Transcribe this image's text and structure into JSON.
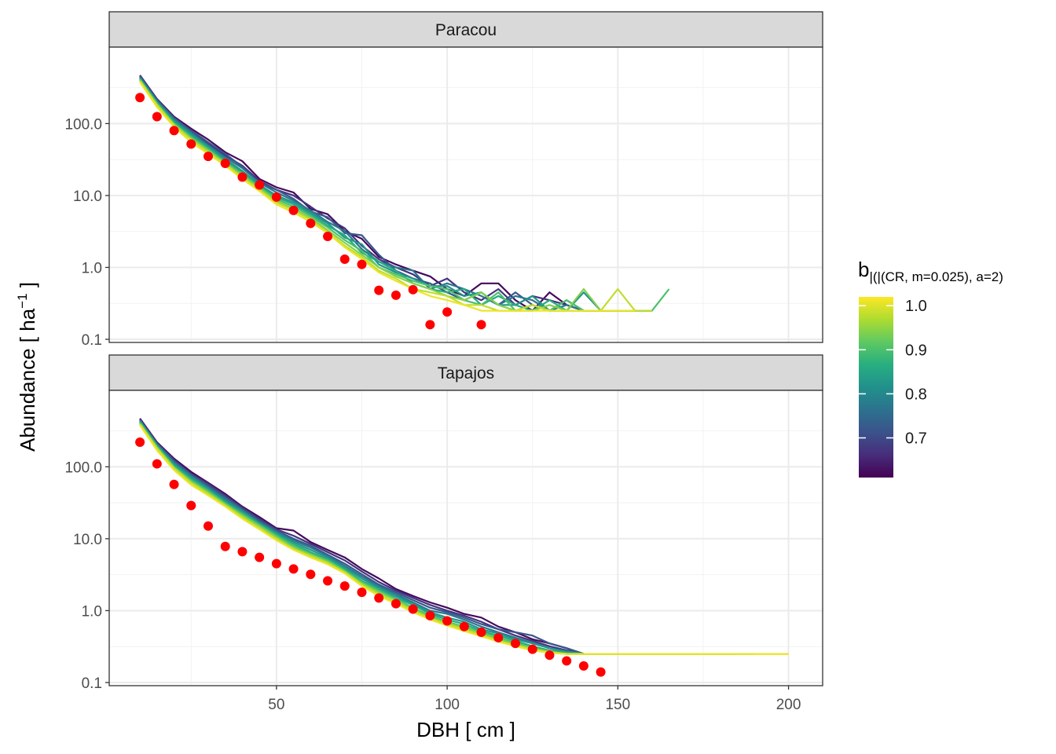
{
  "chart_data": {
    "type": "line",
    "xlabel": "DBH [ cm ]",
    "ylabel_main": "Abundance [ ha",
    "ylabel_sup": "−1",
    "ylabel_end": " ]",
    "y_scale": "log10",
    "ylim": [
      0.1,
      900
    ],
    "xlim": [
      1,
      210
    ],
    "x_ticks": [
      50,
      100,
      150,
      200
    ],
    "x_tick_labels": [
      "50",
      "100",
      "150",
      "200"
    ],
    "y_ticks": [
      0.1,
      1,
      10,
      100
    ],
    "y_tick_labels": [
      "0.1",
      "1.0",
      "10.0",
      "100.0"
    ],
    "grid": true,
    "legend": {
      "title_main": "b",
      "title_sub": "|(|(CR, m=0.025), a=2)",
      "placement": "right",
      "range": [
        0.61,
        1.02
      ],
      "ticks": [
        1.0,
        0.9,
        0.8,
        0.7
      ],
      "tick_labels": [
        "1.0",
        "0.9",
        "0.8",
        "0.7"
      ],
      "colors": [
        "#440154",
        "#472d7b",
        "#3b528b",
        "#2c728e",
        "#21918c",
        "#28ae80",
        "#5ec962",
        "#addc30",
        "#fde725"
      ]
    },
    "observed_color": "#ff0000",
    "panels": [
      {
        "label": "Paracou",
        "observed": {
          "x": [
            10,
            15,
            20,
            25,
            30,
            35,
            40,
            45,
            50,
            55,
            60,
            65,
            70,
            75,
            80,
            85,
            90,
            95,
            100,
            110
          ],
          "y": [
            230,
            125,
            80,
            52,
            35,
            28,
            18,
            14,
            9.5,
            6.2,
            4.1,
            2.7,
            1.3,
            1.1,
            0.48,
            0.41,
            0.49,
            0.16,
            0.24,
            0.16
          ]
        },
        "sim_x_step": 5,
        "series": [
          {
            "b": 0.62,
            "y": [
              470,
              220,
              125,
              85,
              60,
              40,
              30,
              17,
              13,
              11,
              6.5,
              5.5,
              3.2,
              2.5,
              1.4,
              1.1,
              0.9,
              0.75,
              0.5,
              0.4,
              0.6,
              0.6,
              0.35,
              0.25,
              0.45,
              0.3,
              0.25
            ]
          },
          {
            "b": 0.67,
            "y": [
              450,
              210,
              118,
              78,
              52,
              36,
              26,
              16,
              12,
              10,
              7,
              4.8,
              3.5,
              2.0,
              1.3,
              1.0,
              0.8,
              0.55,
              0.7,
              0.45,
              0.35,
              0.5,
              0.3,
              0.4,
              0.35,
              0.3,
              0.25,
              0.25,
              0.25
            ]
          },
          {
            "b": 0.72,
            "y": [
              460,
              215,
              120,
              80,
              55,
              38,
              25,
              15,
              12,
              9,
              6,
              5,
              3.0,
              2.8,
              1.5,
              0.9,
              0.7,
              0.6,
              0.45,
              0.35,
              0.45,
              0.3,
              0.45,
              0.3,
              0.25,
              0.35,
              0.25,
              0.25,
              0.25
            ]
          },
          {
            "b": 0.77,
            "y": [
              440,
              205,
              115,
              75,
              50,
              34,
              24,
              15,
              11,
              8.5,
              6.2,
              4.3,
              3.2,
              1.8,
              1.2,
              1.0,
              0.9,
              0.5,
              0.6,
              0.5,
              0.4,
              0.3,
              0.4,
              0.35,
              0.25,
              0.3,
              0.25,
              0.25,
              0.25,
              0.25
            ]
          },
          {
            "b": 0.82,
            "y": [
              430,
              200,
              110,
              72,
              48,
              32,
              22,
              14,
              10,
              8,
              5.8,
              4.1,
              2.6,
              2.1,
              1.1,
              0.85,
              0.7,
              0.55,
              0.55,
              0.4,
              0.45,
              0.3,
              0.3,
              0.4,
              0.25,
              0.25,
              0.45,
              0.25,
              0.25,
              0.25
            ]
          },
          {
            "b": 0.86,
            "y": [
              420,
              195,
              105,
              68,
              46,
              30,
              21,
              13.5,
              9.5,
              7.5,
              5.5,
              3.8,
              2.8,
              1.6,
              1.2,
              0.9,
              0.6,
              0.5,
              0.45,
              0.5,
              0.3,
              0.4,
              0.3,
              0.25,
              0.35,
              0.25,
              0.25,
              0.25,
              0.25,
              0.25,
              0.25
            ]
          },
          {
            "b": 0.9,
            "y": [
              410,
              190,
              100,
              65,
              44,
              29,
              20,
              13,
              9,
              7,
              5.2,
              3.6,
              2.4,
              1.7,
              1.0,
              0.8,
              0.65,
              0.55,
              0.5,
              0.35,
              0.3,
              0.45,
              0.25,
              0.3,
              0.25,
              0.35,
              0.25,
              0.25,
              0.25,
              0.25,
              0.25,
              0.5
            ]
          },
          {
            "b": 0.94,
            "y": [
              400,
              185,
              98,
              62,
              42,
              28,
              19,
              12.5,
              8.5,
              6.5,
              4.9,
              3.3,
              2.2,
              1.5,
              1.0,
              0.75,
              0.6,
              0.5,
              0.4,
              0.35,
              0.45,
              0.3,
              0.25,
              0.25,
              0.3,
              0.25,
              0.5,
              0.25,
              0.25,
              0.25
            ]
          },
          {
            "b": 0.98,
            "y": [
              390,
              180,
              95,
              60,
              40,
              27,
              18,
              12,
              8,
              6.2,
              4.6,
              3.1,
              2.0,
              1.4,
              0.9,
              0.7,
              0.5,
              0.45,
              0.4,
              0.3,
              0.3,
              0.25,
              0.25,
              0.3,
              0.25,
              0.25,
              0.25,
              0.25,
              0.5,
              0.25,
              0.25
            ]
          },
          {
            "b": 1.01,
            "y": [
              380,
              170,
              90,
              55,
              38,
              26,
              17,
              11.5,
              7.5,
              5.8,
              4.3,
              3.0,
              1.9,
              1.3,
              0.85,
              0.65,
              0.5,
              0.4,
              0.35,
              0.3,
              0.25,
              0.25,
              0.25,
              0.25,
              0.25,
              0.25,
              0.25,
              0.25,
              0.25,
              0.25
            ]
          }
        ]
      },
      {
        "label": "Tapajos",
        "observed": {
          "x": [
            10,
            15,
            20,
            25,
            30,
            35,
            40,
            45,
            50,
            55,
            60,
            65,
            70,
            75,
            80,
            85,
            90,
            95,
            100,
            105,
            110,
            115,
            120,
            125,
            130,
            135,
            140,
            145
          ],
          "y": [
            220,
            110,
            57,
            29,
            15,
            7.8,
            6.6,
            5.5,
            4.5,
            3.8,
            3.2,
            2.6,
            2.2,
            1.8,
            1.5,
            1.25,
            1.05,
            0.85,
            0.72,
            0.6,
            0.5,
            0.42,
            0.35,
            0.29,
            0.24,
            0.2,
            0.17,
            0.14
          ]
        },
        "sim_x_step": 5,
        "series": [
          {
            "b": 0.62,
            "y": [
              470,
              220,
              130,
              85,
              60,
              42,
              28,
              20,
              14,
              13,
              9,
              7,
              5.5,
              3.8,
              2.8,
              2.0,
              1.6,
              1.3,
              1.1,
              0.9,
              0.8,
              0.6,
              0.5,
              0.4,
              0.35,
              0.3,
              0.25,
              0.25,
              0.25
            ]
          },
          {
            "b": 0.67,
            "y": [
              460,
              215,
              125,
              80,
              58,
              40,
              27,
              19,
              13.5,
              11,
              8.5,
              6.5,
              5,
              3.5,
              2.5,
              1.9,
              1.5,
              1.2,
              1.0,
              0.85,
              0.7,
              0.55,
              0.45,
              0.38,
              0.32,
              0.28,
              0.25,
              0.25,
              0.25
            ]
          },
          {
            "b": 0.72,
            "y": [
              450,
              210,
              120,
              78,
              55,
              38,
              26,
              18,
              13,
              10,
              8,
              6,
              4.5,
              3.2,
              2.3,
              1.8,
              1.4,
              1.1,
              0.95,
              0.8,
              0.65,
              0.55,
              0.5,
              0.45,
              0.35,
              0.3,
              0.25,
              0.25,
              0.25
            ]
          },
          {
            "b": 0.77,
            "y": [
              440,
              205,
              115,
              75,
              52,
              36,
              25,
              17,
              12.5,
              9.5,
              7.5,
              5.8,
              4.2,
              3.0,
              2.2,
              1.7,
              1.3,
              1.0,
              0.9,
              0.75,
              0.6,
              0.5,
              0.42,
              0.36,
              0.3,
              0.27,
              0.25,
              0.25,
              0.25
            ]
          },
          {
            "b": 0.82,
            "y": [
              430,
              200,
              110,
              72,
              50,
              34,
              24,
              16.5,
              12,
              9,
              7,
              5.5,
              4.0,
              2.8,
              2.1,
              1.6,
              1.25,
              0.95,
              0.8,
              0.7,
              0.55,
              0.48,
              0.4,
              0.35,
              0.3,
              0.27,
              0.25,
              0.25,
              0.25
            ]
          },
          {
            "b": 0.86,
            "y": [
              420,
              195,
              105,
              68,
              48,
              32,
              23,
              16,
              11.5,
              8.5,
              6.5,
              5.2,
              3.8,
              2.6,
              2.0,
              1.5,
              1.2,
              0.9,
              0.75,
              0.65,
              0.52,
              0.45,
              0.38,
              0.32,
              0.28,
              0.26,
              0.25,
              0.25,
              0.25
            ]
          },
          {
            "b": 0.9,
            "y": [
              410,
              190,
              100,
              65,
              46,
              31,
              22,
              15.5,
              11,
              8,
              6.2,
              5.0,
              3.6,
              2.5,
              1.9,
              1.45,
              1.1,
              0.85,
              0.7,
              0.6,
              0.5,
              0.42,
              0.36,
              0.3,
              0.27,
              0.25,
              0.25,
              0.25,
              0.25,
              0.25,
              0.25,
              0.25,
              0.25,
              0.25,
              0.25,
              0.25
            ]
          },
          {
            "b": 0.94,
            "y": [
              400,
              185,
              98,
              62,
              44,
              30,
              21,
              15,
              10.5,
              7.5,
              6.0,
              4.8,
              3.5,
              2.4,
              1.8,
              1.4,
              1.05,
              0.8,
              0.68,
              0.58,
              0.48,
              0.4,
              0.34,
              0.3,
              0.27,
              0.25,
              0.25,
              0.25,
              0.25,
              0.25,
              0.25,
              0.25,
              0.25,
              0.25,
              0.25,
              0.25,
              0.25
            ]
          },
          {
            "b": 0.98,
            "y": [
              390,
              180,
              95,
              60,
              42,
              29,
              20,
              14,
              10,
              7.2,
              5.8,
              4.6,
              3.4,
              2.3,
              1.7,
              1.3,
              1.0,
              0.78,
              0.65,
              0.55,
              0.46,
              0.38,
              0.33,
              0.29,
              0.26,
              0.25,
              0.25,
              0.25,
              0.25,
              0.25,
              0.25,
              0.25,
              0.25,
              0.25,
              0.25,
              0.25,
              0.25,
              0.25,
              0.25
            ]
          },
          {
            "b": 1.01,
            "y": [
              380,
              170,
              90,
              56,
              40,
              28,
              19,
              13.5,
              9.5,
              7.0,
              5.5,
              4.4,
              3.3,
              2.2,
              1.6,
              1.25,
              0.95,
              0.75,
              0.62,
              0.52,
              0.44,
              0.37,
              0.32,
              0.28,
              0.26,
              0.25,
              0.25,
              0.25,
              0.25,
              0.25,
              0.25,
              0.25,
              0.25,
              0.25,
              0.25,
              0.25,
              0.25,
              0.25,
              0.25
            ]
          }
        ]
      }
    ]
  }
}
